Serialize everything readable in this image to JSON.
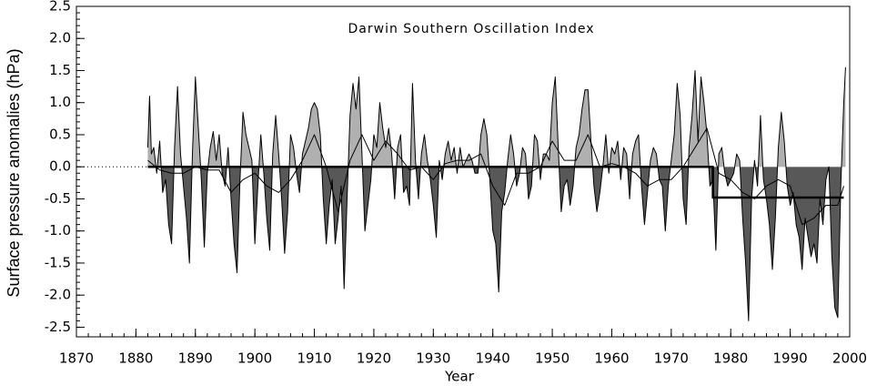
{
  "chart_data": {
    "type": "area",
    "title": "Darwin Southern Oscillation Index",
    "x_label": "Year",
    "y_label": "Surface pressure anomalies (hPa)",
    "xlim": [
      1870,
      2000
    ],
    "xticks": [
      1870,
      1880,
      1890,
      1900,
      1910,
      1920,
      1930,
      1940,
      1950,
      1960,
      1970,
      1980,
      1990,
      2000
    ],
    "ylim": [
      -2.65,
      2.5
    ],
    "yticks": [
      2.5,
      {
        "value": 2,
        "label": "2.0"
      },
      1.5,
      {
        "value": 1,
        "label": "1.0"
      },
      0.5,
      {
        "value": 0,
        "label": "0.0"
      },
      -0.5,
      {
        "value": -1,
        "label": "-1.0"
      },
      -1.5,
      {
        "value": -2,
        "label": "-2.0"
      },
      -2.5
    ],
    "series": [
      {
        "color": "#000000",
        "fill_positive": "#b0b0b0",
        "fill_negative": "#585858",
        "width": 1,
        "x": [
          1882,
          1882.3,
          1882.6,
          1883,
          1883.5,
          1884,
          1884.5,
          1885,
          1885.5,
          1886,
          1886.5,
          1887,
          1887.5,
          1888,
          1888.5,
          1889,
          1889.5,
          1890,
          1890.5,
          1891,
          1891.5,
          1892,
          1892.5,
          1893,
          1893.5,
          1894,
          1894.5,
          1895,
          1895.5,
          1896,
          1896.5,
          1897,
          1897.5,
          1898,
          1898.5,
          1899,
          1899.5,
          1900,
          1900.5,
          1901,
          1901.5,
          1902,
          1902.5,
          1903,
          1903.5,
          1904,
          1904.5,
          1905,
          1905.5,
          1906,
          1906.5,
          1907,
          1907.5,
          1908,
          1908.5,
          1909,
          1909.5,
          1910,
          1910.5,
          1911,
          1911.5,
          1912,
          1912.5,
          1913,
          1913.5,
          1914,
          1914.5,
          1915,
          1915.5,
          1916,
          1916.5,
          1917,
          1917.5,
          1918,
          1918.5,
          1919,
          1919.5,
          1920,
          1920.5,
          1921,
          1921.5,
          1922,
          1922.5,
          1923,
          1923.5,
          1924,
          1924.5,
          1925,
          1925.5,
          1926,
          1926.5,
          1927,
          1927.5,
          1928,
          1928.5,
          1929,
          1929.5,
          1930,
          1930.5,
          1931,
          1931.5,
          1932,
          1932.5,
          1933,
          1933.5,
          1934,
          1934.5,
          1935,
          1935.5,
          1936,
          1936.5,
          1937,
          1937.5,
          1938,
          1938.5,
          1939,
          1939.5,
          1940,
          1940.5,
          1941,
          1941.5,
          1942,
          1942.5,
          1943,
          1943.5,
          1944,
          1944.5,
          1945,
          1945.5,
          1946,
          1946.5,
          1947,
          1947.5,
          1948,
          1948.5,
          1949,
          1949.5,
          1950,
          1950.5,
          1951,
          1951.5,
          1952,
          1952.5,
          1953,
          1953.5,
          1954,
          1954.5,
          1955,
          1955.5,
          1956,
          1956.5,
          1957,
          1957.5,
          1958,
          1958.5,
          1959,
          1959.5,
          1960,
          1960.5,
          1961,
          1961.5,
          1962,
          1962.5,
          1963,
          1963.5,
          1964,
          1964.5,
          1965,
          1965.5,
          1966,
          1966.5,
          1967,
          1967.5,
          1968,
          1968.5,
          1969,
          1969.5,
          1970,
          1970.5,
          1971,
          1971.5,
          1972,
          1972.5,
          1973,
          1973.5,
          1974,
          1974.5,
          1975,
          1975.5,
          1976,
          1976.5,
          1977,
          1977.5,
          1978,
          1978.5,
          1979,
          1979.5,
          1980,
          1980.5,
          1981,
          1981.5,
          1982,
          1982.5,
          1983,
          1983.5,
          1984,
          1984.5,
          1985,
          1985.5,
          1986,
          1986.5,
          1987,
          1987.5,
          1988,
          1988.5,
          1989,
          1989.5,
          1990,
          1990.5,
          1991,
          1991.5,
          1992,
          1992.5,
          1993,
          1993.5,
          1994,
          1994.5,
          1995,
          1995.5,
          1996,
          1996.5,
          1997,
          1997.5,
          1998,
          1998.5,
          1999,
          1999.3
        ],
        "values": [
          0.3,
          1.1,
          0.2,
          0.3,
          -0.1,
          0.4,
          -0.4,
          -0.2,
          -0.9,
          -1.2,
          0.3,
          1.25,
          0.2,
          -0.3,
          -0.8,
          -1.5,
          0.2,
          1.4,
          0.6,
          -0.2,
          -1.25,
          -0.1,
          0.3,
          0.55,
          0.1,
          0.5,
          -0.1,
          -0.3,
          0.3,
          -0.5,
          -1.2,
          -1.65,
          -0.2,
          0.85,
          0.5,
          0.3,
          0.1,
          -1.2,
          -0.3,
          0.5,
          -0.1,
          -0.8,
          -1.3,
          0.2,
          0.8,
          0.2,
          -0.5,
          -1.35,
          -0.7,
          0.5,
          0.3,
          -0.1,
          -0.4,
          0.2,
          0.4,
          0.6,
          0.9,
          1.0,
          0.9,
          0.5,
          -0.5,
          -1.2,
          -0.6,
          -0.2,
          -1.2,
          -0.8,
          -0.3,
          -1.9,
          -0.5,
          0.8,
          1.3,
          0.9,
          1.4,
          0.2,
          -1.0,
          -0.6,
          -0.2,
          0.5,
          0.3,
          1.0,
          0.6,
          0.3,
          0.6,
          0.2,
          -0.5,
          0.3,
          0.5,
          -0.4,
          -0.3,
          -0.6,
          1.3,
          0.1,
          -0.5,
          0.2,
          0.5,
          0.1,
          -0.2,
          -0.6,
          -1.1,
          0.1,
          -0.2,
          0.2,
          0.4,
          0.1,
          0.3,
          -0.1,
          0.3,
          0,
          0.1,
          0.2,
          0.1,
          -0.1,
          -0.1,
          0.5,
          0.75,
          0.5,
          -0.2,
          -1.0,
          -1.2,
          -1.95,
          -0.7,
          -0.4,
          0.1,
          0.5,
          0.2,
          -0.3,
          -0.1,
          0.3,
          0.2,
          -0.5,
          -0.3,
          0.5,
          0.4,
          -0.2,
          0.2,
          0.2,
          0.1,
          1.0,
          1.4,
          0.3,
          -0.7,
          -0.3,
          -0.2,
          -0.6,
          -0.3,
          0.3,
          0.5,
          0.9,
          1.2,
          1.2,
          0.4,
          -0.3,
          -0.7,
          -0.4,
          0.0,
          0.5,
          -0.1,
          0.3,
          0.2,
          0.4,
          -0.2,
          0.3,
          0.2,
          -0.5,
          0.2,
          0.4,
          0.5,
          -0.3,
          -0.9,
          -0.4,
          0.1,
          0.3,
          0.2,
          -0.2,
          -0.3,
          -1.0,
          -0.3,
          0.1,
          0.5,
          1.3,
          0.8,
          -0.5,
          -0.9,
          0.3,
          0.8,
          1.5,
          0.4,
          1.4,
          1.0,
          0.5,
          -0.3,
          -0.2,
          -1.3,
          0.2,
          0.3,
          -0.1,
          -0.3,
          -0.2,
          -0.1,
          0.2,
          0.1,
          -0.8,
          -1.5,
          -2.4,
          -0.5,
          0.1,
          -0.3,
          0.8,
          -0.2,
          -0.5,
          -0.9,
          -1.6,
          -0.8,
          0.3,
          0.85,
          0.4,
          -0.3,
          -0.6,
          -0.4,
          -0.9,
          -1.1,
          -1.6,
          -0.8,
          -1.1,
          -1.4,
          -1.2,
          -1.5,
          -0.5,
          -0.9,
          -0.2,
          0.0,
          -1.4,
          -2.2,
          -2.35,
          -0.3,
          1.0,
          1.55
        ]
      },
      {
        "color": "#000000",
        "width": 1,
        "x": [
          1882,
          1884,
          1886,
          1888,
          1890,
          1892,
          1894,
          1896,
          1898,
          1900,
          1902,
          1904,
          1906,
          1908,
          1910,
          1912,
          1914,
          1916,
          1918,
          1920,
          1922,
          1924,
          1926,
          1928,
          1930,
          1932,
          1934,
          1936,
          1938,
          1940,
          1942,
          1944,
          1946,
          1948,
          1950,
          1952,
          1954,
          1956,
          1958,
          1960,
          1962,
          1964,
          1966,
          1968,
          1970,
          1972,
          1974,
          1976,
          1978,
          1980,
          1982,
          1984,
          1986,
          1988,
          1990,
          1992,
          1994,
          1996,
          1998,
          1999
        ],
        "values": [
          0.1,
          -0.05,
          -0.1,
          -0.1,
          0.0,
          -0.05,
          -0.05,
          -0.4,
          -0.2,
          -0.1,
          -0.3,
          -0.4,
          -0.2,
          0.1,
          0.5,
          0.0,
          -0.7,
          0.1,
          0.5,
          0.1,
          0.4,
          0.2,
          -0.05,
          0.0,
          -0.2,
          0.05,
          0.1,
          0.1,
          0.2,
          -0.3,
          -0.6,
          -0.1,
          -0.1,
          0.0,
          0.4,
          0.1,
          0.1,
          0.5,
          0.0,
          0.05,
          0.0,
          -0.1,
          -0.3,
          -0.2,
          -0.2,
          0.0,
          0.3,
          0.6,
          -0.1,
          -0.2,
          -0.4,
          -0.5,
          -0.3,
          -0.2,
          -0.3,
          -0.9,
          -0.8,
          -0.6,
          -0.6,
          -0.3
        ]
      },
      {
        "color": "#000000",
        "width": 2.5,
        "x": [
          1882,
          1977,
          1977,
          1999
        ],
        "values": [
          0,
          0,
          -0.48,
          -0.48
        ]
      }
    ]
  }
}
